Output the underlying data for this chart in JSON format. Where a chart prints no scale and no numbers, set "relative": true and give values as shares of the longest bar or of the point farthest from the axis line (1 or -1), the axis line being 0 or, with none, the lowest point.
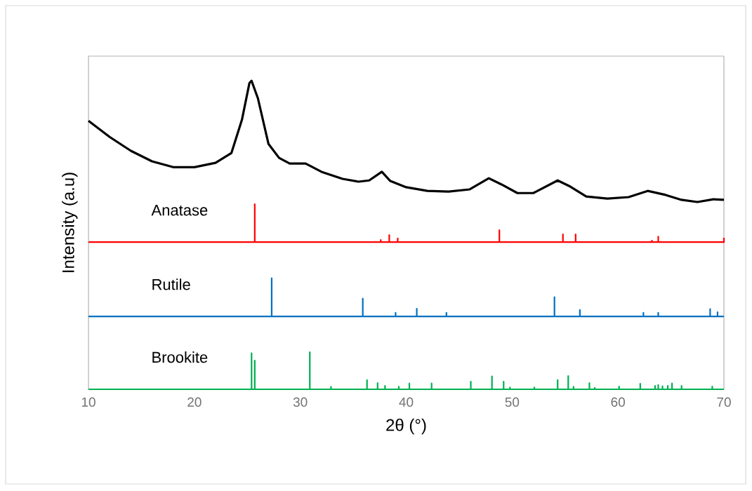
{
  "chart_data": {
    "type": "line",
    "relative": true,
    "xlabel": "2θ (°)",
    "ylabel": "Intensity (a.u)",
    "xlim": [
      10,
      70
    ],
    "xticks": [
      10,
      20,
      30,
      40,
      50,
      60,
      70
    ],
    "grid": false,
    "marker": "none",
    "line_style": "solid",
    "series": [
      {
        "color": "#000000",
        "x": [
          10,
          12,
          14,
          16,
          18,
          20,
          22,
          23.5,
          24.5,
          25.2,
          25.4,
          26,
          27,
          28,
          29,
          30.5,
          32,
          34,
          35.5,
          36.5,
          37.7,
          38.5,
          40,
          42,
          44,
          46,
          47.8,
          49,
          50.5,
          52,
          54.3,
          55.5,
          57,
          59,
          61,
          62.8,
          64.5,
          66,
          67.5,
          69,
          70
        ],
        "values": [
          0.87,
          0.818,
          0.773,
          0.739,
          0.72,
          0.72,
          0.734,
          0.766,
          0.875,
          0.993,
          1.0,
          0.943,
          0.795,
          0.75,
          0.732,
          0.732,
          0.705,
          0.682,
          0.673,
          0.677,
          0.705,
          0.675,
          0.655,
          0.643,
          0.641,
          0.648,
          0.684,
          0.664,
          0.636,
          0.636,
          0.677,
          0.657,
          0.625,
          0.618,
          0.623,
          0.643,
          0.63,
          0.614,
          0.607,
          0.616,
          0.614
        ]
      },
      {
        "name": "Anatase",
        "color": "#ff0000",
        "x": [
          10,
          25.7,
          25.7,
          25.7,
          37.6,
          37.6,
          37.6,
          38.4,
          38.4,
          38.4,
          39.2,
          39.2,
          39.2,
          48.8,
          48.8,
          48.8,
          54.8,
          54.8,
          54.8,
          56.0,
          56.0,
          56.0,
          63.2,
          63.2,
          63.2,
          63.8,
          63.8,
          63.8,
          70,
          70
        ],
        "values": [
          0.477,
          0.477,
          0.6,
          0.477,
          0.477,
          0.484,
          0.477,
          0.477,
          0.5,
          0.477,
          0.477,
          0.489,
          0.477,
          0.477,
          0.516,
          0.477,
          0.477,
          0.502,
          0.477,
          0.477,
          0.502,
          0.477,
          0.477,
          0.482,
          0.477,
          0.477,
          0.495,
          0.477,
          0.477,
          0.491
        ]
      },
      {
        "name": "Rutile",
        "color": "#0070c0",
        "x": [
          10,
          27.3,
          27.3,
          27.3,
          35.9,
          35.9,
          35.9,
          39.0,
          39.0,
          39.0,
          41.0,
          41.0,
          41.0,
          43.8,
          43.8,
          43.8,
          54.0,
          54.0,
          54.0,
          56.4,
          56.4,
          56.4,
          62.4,
          62.4,
          62.4,
          63.8,
          63.8,
          63.8,
          68.7,
          68.7,
          68.7,
          69.4,
          69.4,
          69.4,
          70
        ],
        "values": [
          0.236,
          0.236,
          0.36,
          0.236,
          0.236,
          0.294,
          0.236,
          0.236,
          0.248,
          0.236,
          0.236,
          0.261,
          0.236,
          0.236,
          0.248,
          0.236,
          0.236,
          0.299,
          0.236,
          0.236,
          0.257,
          0.236,
          0.236,
          0.248,
          0.236,
          0.236,
          0.248,
          0.236,
          0.236,
          0.26,
          0.236,
          0.236,
          0.25,
          0.236,
          0.236
        ]
      },
      {
        "name": "Brookite",
        "color": "#00b050",
        "x": [
          10,
          25.4,
          25.4,
          25.4,
          25.7,
          25.7,
          25.7,
          30.9,
          30.9,
          30.9,
          32.9,
          32.9,
          32.9,
          36.3,
          36.3,
          36.3,
          37.3,
          37.3,
          37.3,
          38.0,
          38.0,
          38.0,
          39.3,
          39.3,
          39.3,
          40.3,
          40.3,
          40.3,
          42.4,
          42.4,
          42.4,
          46.1,
          46.1,
          46.1,
          48.1,
          48.1,
          48.1,
          49.2,
          49.2,
          49.2,
          49.8,
          49.8,
          49.8,
          52.1,
          52.1,
          52.1,
          54.3,
          54.3,
          54.3,
          55.3,
          55.3,
          55.3,
          55.8,
          55.8,
          55.8,
          57.3,
          57.3,
          57.3,
          57.8,
          57.8,
          57.8,
          60.1,
          60.1,
          60.1,
          62.1,
          62.1,
          62.1,
          63.5,
          63.5,
          63.5,
          63.8,
          63.8,
          63.8,
          64.2,
          64.2,
          64.2,
          64.7,
          64.7,
          64.7,
          65.1,
          65.1,
          65.1,
          66.0,
          66.0,
          66.0,
          68.9,
          68.9,
          68.9,
          70
        ],
        "values": [
          0,
          0,
          0.117,
          0,
          0,
          0.093,
          0,
          0,
          0.12,
          0,
          0,
          0.008,
          0,
          0,
          0.03,
          0,
          0,
          0.02,
          0,
          0,
          0.011,
          0,
          0,
          0.008,
          0,
          0,
          0.019,
          0,
          0,
          0.019,
          0,
          0,
          0.025,
          0,
          0,
          0.042,
          0,
          0,
          0.025,
          0,
          0,
          0.006,
          0,
          0,
          0.006,
          0,
          0,
          0.03,
          0,
          0,
          0.043,
          0,
          0,
          0.008,
          0,
          0,
          0.02,
          0,
          0,
          0.005,
          0,
          0,
          0.009,
          0,
          0,
          0.018,
          0,
          0,
          0.011,
          0,
          0,
          0.014,
          0,
          0,
          0.01,
          0,
          0,
          0.011,
          0,
          0,
          0.019,
          0,
          0,
          0.011,
          0,
          0,
          0.009,
          0,
          0
        ]
      }
    ]
  }
}
